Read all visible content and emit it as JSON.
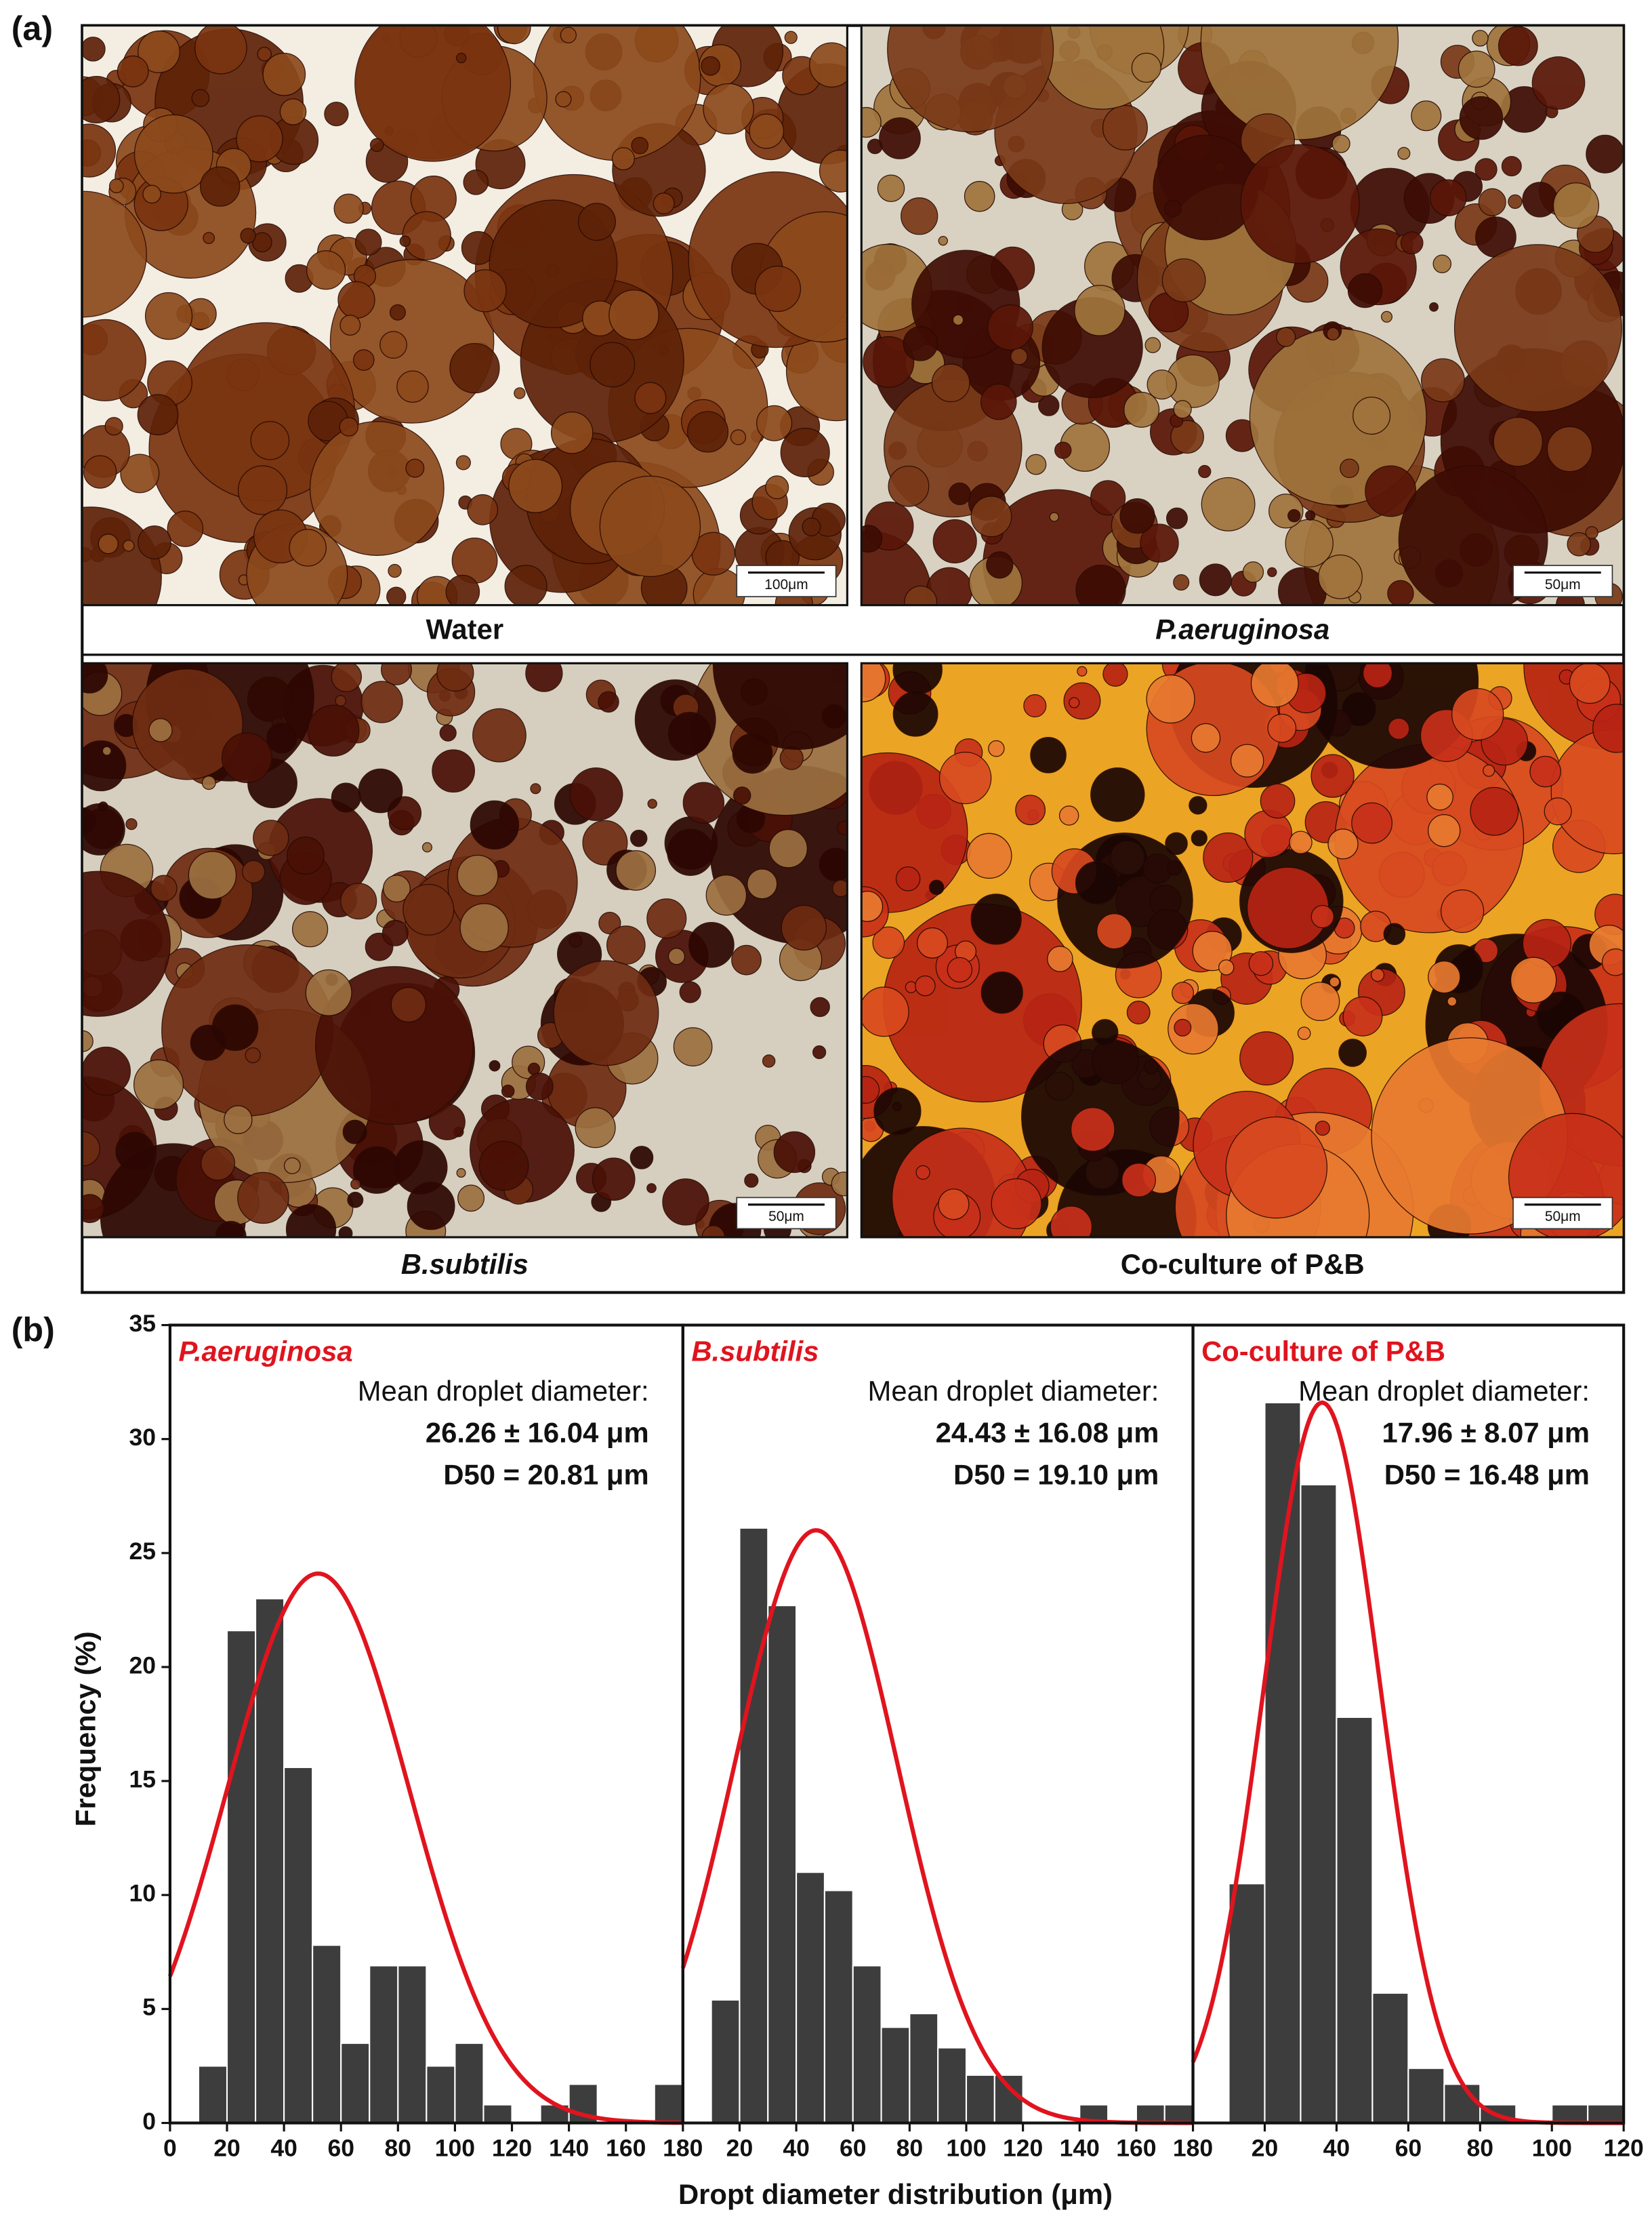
{
  "panel_a": {
    "label": "(a)",
    "images": [
      {
        "caption": "Water",
        "scale_bar": "100μm"
      },
      {
        "caption": "P.aeruginosa",
        "scale_bar": "50μm"
      },
      {
        "caption": "B.subtilis",
        "scale_bar": "50μm"
      },
      {
        "caption": "Co-culture of P&B",
        "scale_bar": "50μm"
      }
    ]
  },
  "panel_b": {
    "label": "(b)"
  },
  "chart_data": [
    {
      "type": "histogram",
      "title": "P.aeruginosa",
      "y_label": "Frequency (%)",
      "stats": [
        "Mean droplet diameter:",
        "26.26 ± 16.04 μm",
        "D50 = 20.81 μm"
      ],
      "bins": [
        10,
        20,
        30,
        40,
        50,
        60,
        70,
        80,
        90,
        100,
        110,
        120,
        130,
        140,
        150,
        160,
        170,
        180
      ],
      "values": [
        2.5,
        21.6,
        23.0,
        15.6,
        7.8,
        3.5,
        6.9,
        6.9,
        2.5,
        3.5,
        0.8,
        0,
        0.8,
        1.7,
        0,
        0,
        1.7
      ],
      "color": "#3d3d3d",
      "fit": {
        "mean": 52,
        "sd": 32,
        "peak": 24.1,
        "color": "#e0141e"
      },
      "xlim": [
        0,
        180
      ],
      "xticks": [
        0,
        20,
        40,
        60,
        80,
        100,
        120,
        140,
        160,
        180
      ],
      "ylim": [
        0,
        35
      ],
      "yticks": [
        0,
        5,
        10,
        15,
        20,
        25,
        30,
        35
      ]
    },
    {
      "type": "histogram",
      "title": "B.subtilis",
      "x_label": "Dropt diameter distribution (μm)",
      "stats": [
        "Mean droplet diameter:",
        "24.43 ± 16.08 μm",
        "D50 = 19.10 μm"
      ],
      "bins": [
        10,
        20,
        30,
        40,
        50,
        60,
        70,
        80,
        90,
        100,
        110,
        120,
        130,
        140,
        150,
        160,
        170,
        180
      ],
      "values": [
        5.4,
        26.1,
        22.7,
        11.0,
        10.2,
        6.9,
        4.2,
        4.8,
        3.3,
        2.1,
        2.1,
        0,
        0,
        0.8,
        0,
        0.8,
        0.8
      ],
      "color": "#3d3d3d",
      "fit": {
        "mean": 47,
        "sd": 28.7,
        "peak": 26.0,
        "color": "#e0141e"
      },
      "xlim": [
        0,
        180
      ],
      "xticks": [
        20,
        40,
        60,
        80,
        100,
        120,
        140,
        160,
        180
      ],
      "ylim": [
        0,
        35
      ]
    },
    {
      "type": "histogram",
      "title": "Co-culture of P&B",
      "stats": [
        "Mean droplet diameter:",
        "17.96 ± 8.07 μm",
        "D50 = 16.48 μm"
      ],
      "bins": [
        10,
        20,
        30,
        40,
        50,
        60,
        70,
        80,
        90,
        100,
        110,
        120
      ],
      "values": [
        10.5,
        31.6,
        28.0,
        17.8,
        5.7,
        2.4,
        1.7,
        0.8,
        0,
        0.8,
        0.8
      ],
      "color": "#3d3d3d",
      "fit": {
        "mean": 36,
        "sd": 16.2,
        "peak": 31.6,
        "color": "#e0141e"
      },
      "xlim": [
        0,
        120
      ],
      "xticks": [
        20,
        40,
        60,
        80,
        100,
        120
      ],
      "ylim": [
        0,
        35
      ]
    }
  ]
}
